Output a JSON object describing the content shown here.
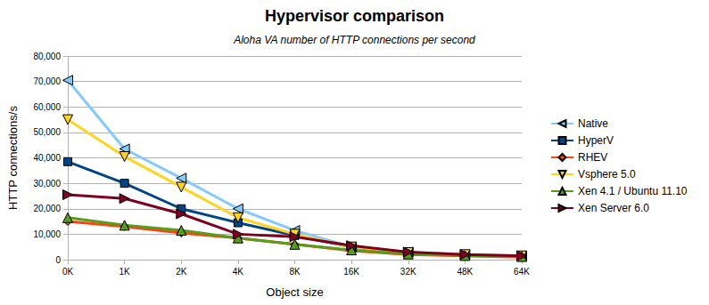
{
  "chart_data": {
    "type": "line",
    "title": "Hypervisor comparison",
    "subtitle": "Aloha VA number of HTTP connections per second",
    "x_label": "Object size",
    "y_label": "HTTP connections/s",
    "categories": [
      "0K",
      "1K",
      "2K",
      "4K",
      "8K",
      "16K",
      "32K",
      "48K",
      "64K"
    ],
    "ylim": [
      0,
      80000
    ],
    "yticks": [
      0,
      10000,
      20000,
      30000,
      40000,
      50000,
      60000,
      70000,
      80000
    ],
    "grid": true,
    "legend": "right",
    "series": [
      {
        "name": "Native",
        "color": "#83caff",
        "marker": "triangle-left",
        "values": [
          70500,
          43500,
          32000,
          20000,
          11500,
          5000,
          3000,
          2000,
          1500
        ]
      },
      {
        "name": "HyperV",
        "color": "#004586",
        "marker": "square",
        "values": [
          38500,
          30000,
          20000,
          14500,
          9500,
          5000,
          2500,
          1800,
          1200
        ]
      },
      {
        "name": "RHEV",
        "color": "#ff420e",
        "marker": "diamond",
        "values": [
          15000,
          13000,
          10500,
          8500,
          6000,
          3500,
          2000,
          1500,
          1000
        ]
      },
      {
        "name": "Vsphere 5.0",
        "color": "#ffd320",
        "marker": "triangle-down",
        "values": [
          55000,
          40500,
          28500,
          16500,
          10000,
          5000,
          2800,
          2000,
          1500
        ]
      },
      {
        "name": "Xen 4.1 / Ubuntu 11.10",
        "color": "#579d1c",
        "marker": "triangle-up",
        "values": [
          16500,
          13500,
          11500,
          8500,
          6000,
          3800,
          2200,
          1600,
          1200
        ]
      },
      {
        "name": "Xen Server 6.0",
        "color": "#7e0021",
        "marker": "triangle-right",
        "values": [
          25500,
          24000,
          18000,
          10000,
          9000,
          5500,
          3000,
          2000,
          1500
        ]
      }
    ]
  }
}
